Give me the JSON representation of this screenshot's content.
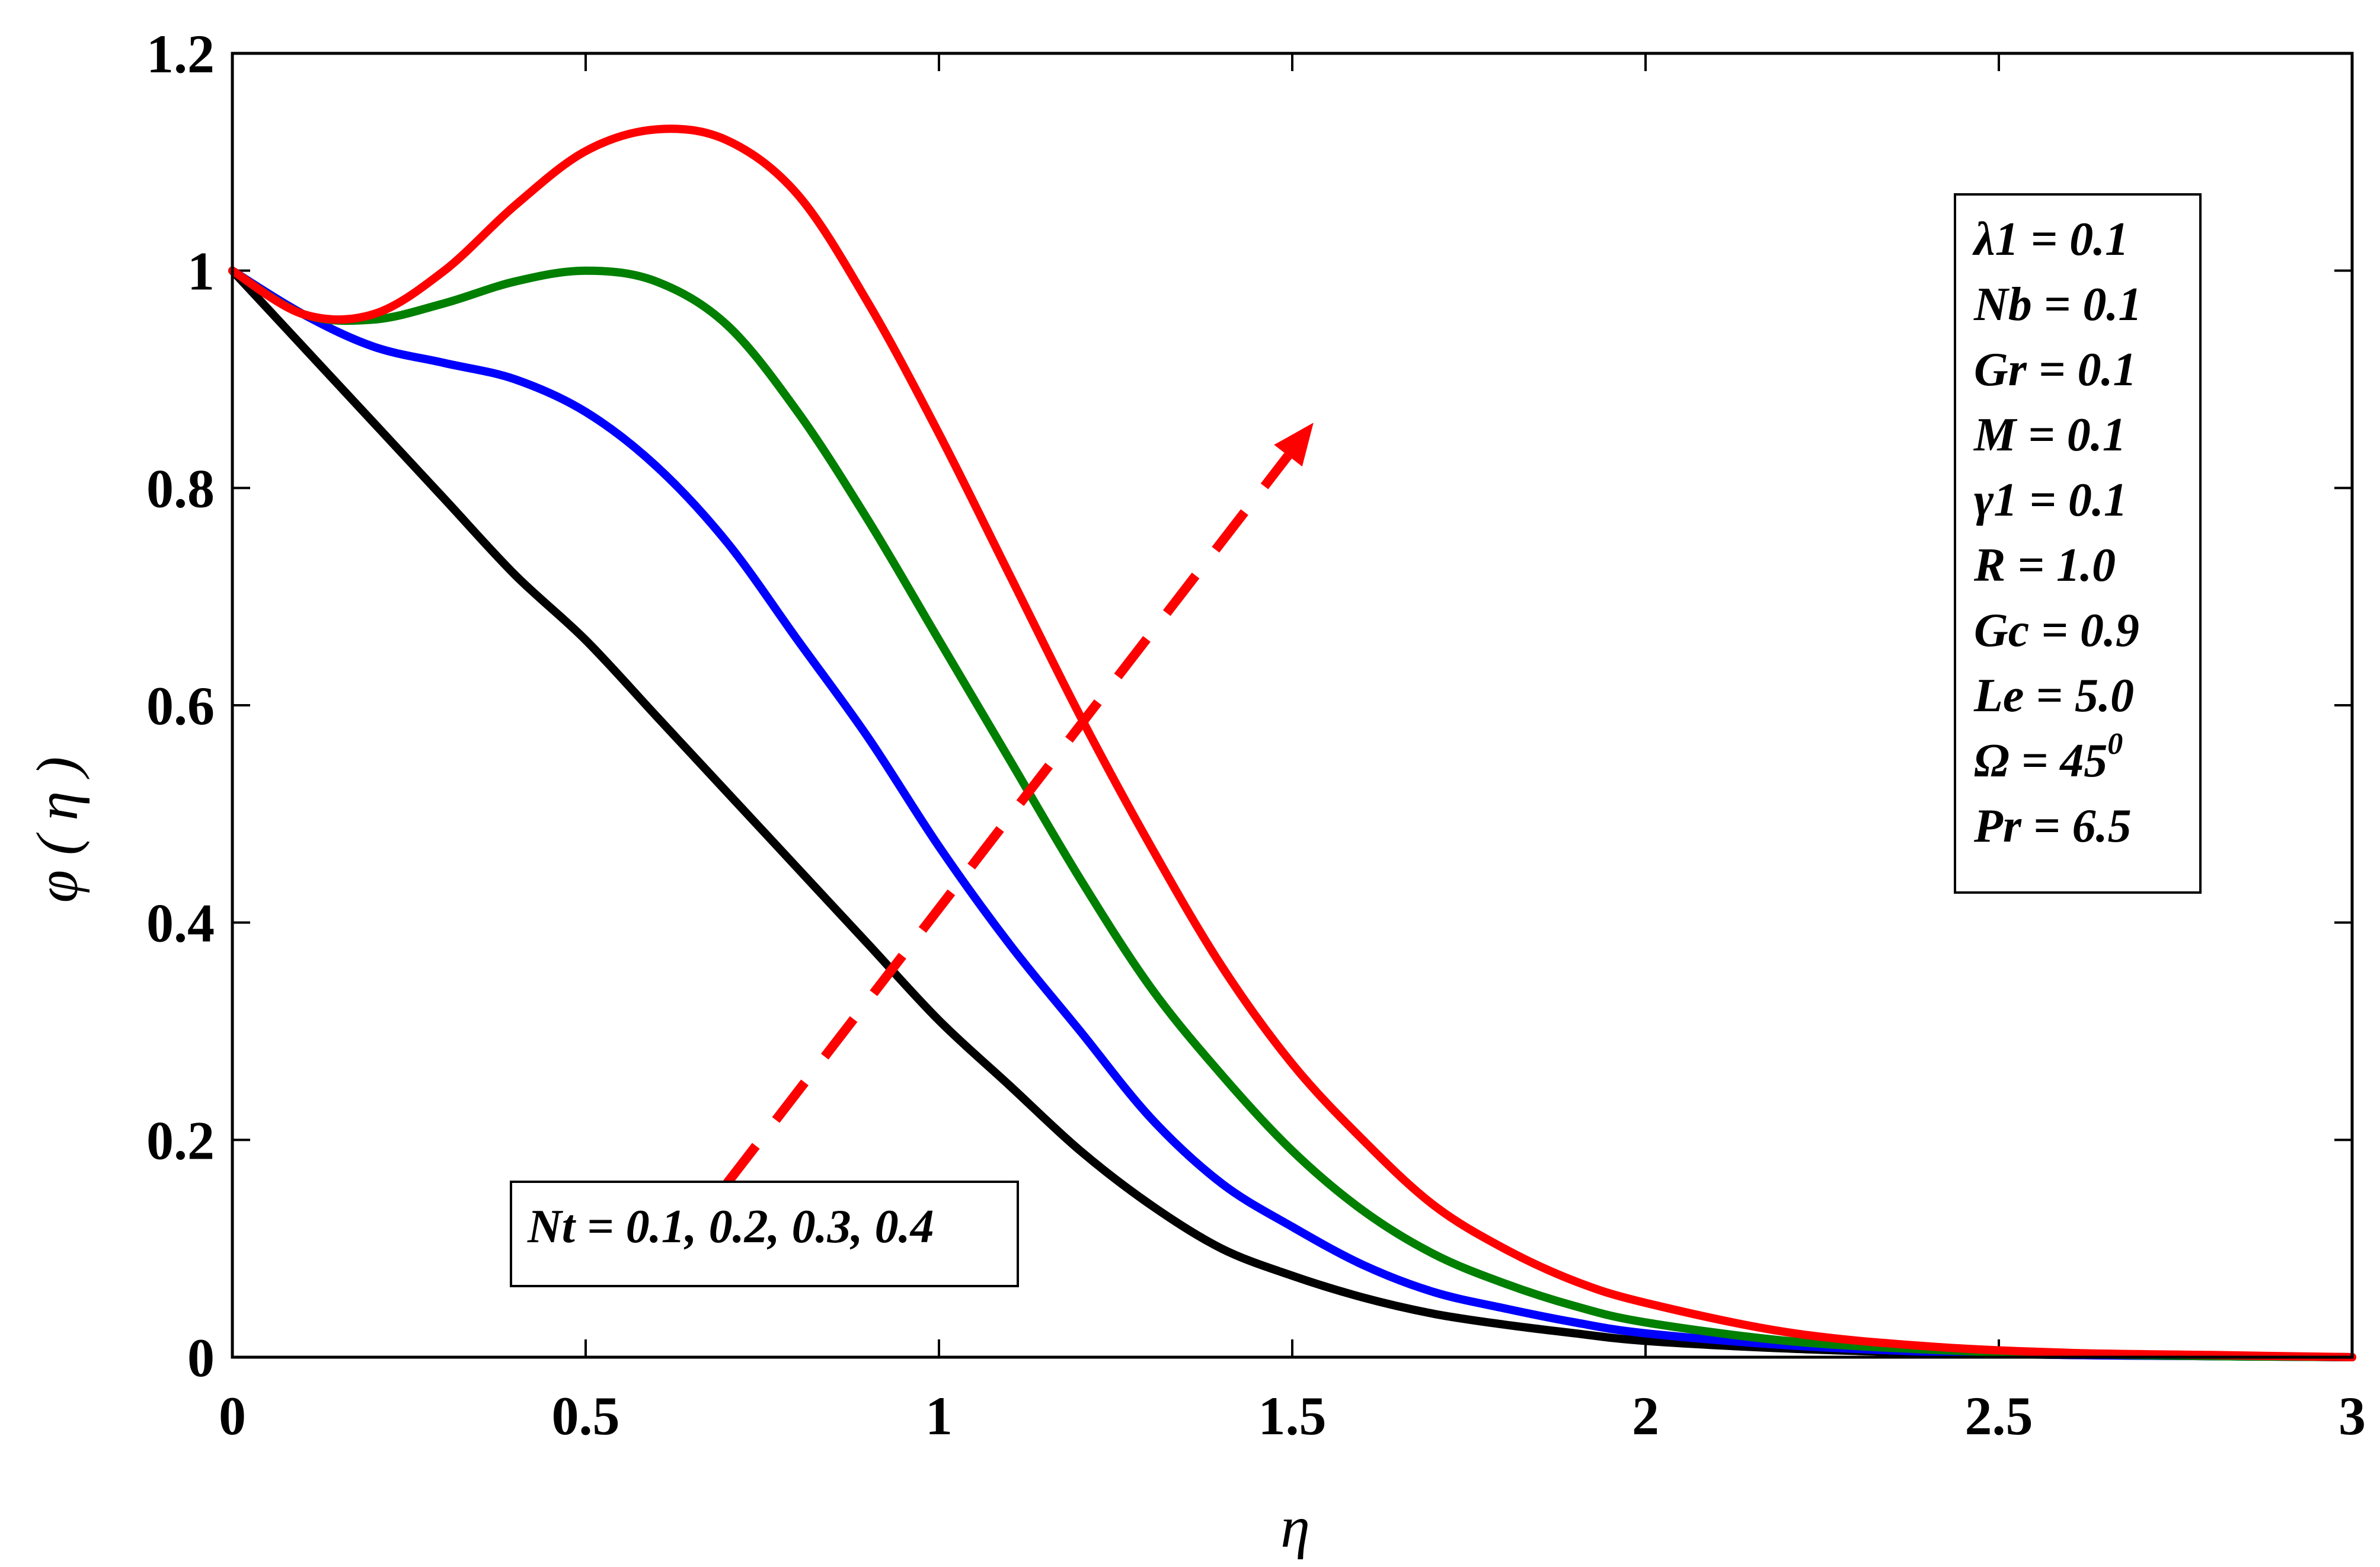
{
  "chart_data": {
    "type": "line",
    "title": "",
    "xlabel": "η",
    "ylabel": "φ ( η )",
    "xlim": [
      0,
      3
    ],
    "ylim": [
      0,
      1.2
    ],
    "x_ticks": [
      0,
      0.5,
      1,
      1.5,
      2,
      2.5,
      3
    ],
    "x_tick_labels": [
      "0",
      "0.5",
      "1",
      "1.5",
      "2",
      "2.5",
      "3"
    ],
    "y_ticks": [
      0,
      0.2,
      0.4,
      0.6,
      0.8,
      1.0,
      1.2
    ],
    "y_tick_labels": [
      "0",
      "0.2",
      "0.4",
      "0.6",
      "0.8",
      "1",
      "1.2"
    ],
    "grid": false,
    "x": [
      0,
      0.1,
      0.2,
      0.3,
      0.4,
      0.5,
      0.6,
      0.7,
      0.8,
      0.9,
      1.0,
      1.1,
      1.2,
      1.3,
      1.4,
      1.5,
      1.6,
      1.7,
      1.8,
      1.9,
      2.0,
      2.2,
      2.4,
      2.6,
      2.8,
      3.0
    ],
    "series": [
      {
        "name": "Nt = 0.1",
        "color": "#000000",
        "values": [
          1.0,
          0.93,
          0.86,
          0.79,
          0.72,
          0.66,
          0.59,
          0.52,
          0.45,
          0.38,
          0.31,
          0.25,
          0.19,
          0.14,
          0.1,
          0.075,
          0.055,
          0.04,
          0.03,
          0.022,
          0.015,
          0.008,
          0.004,
          0.002,
          0.001,
          0.0
        ]
      },
      {
        "name": "Nt = 0.2",
        "color": "#0000ff",
        "values": [
          1.0,
          0.96,
          0.93,
          0.915,
          0.9,
          0.87,
          0.82,
          0.75,
          0.66,
          0.57,
          0.47,
          0.38,
          0.3,
          0.22,
          0.16,
          0.12,
          0.085,
          0.06,
          0.045,
          0.032,
          0.022,
          0.011,
          0.005,
          0.002,
          0.001,
          0.0
        ]
      },
      {
        "name": "Nt = 0.3",
        "color": "#007f00",
        "values": [
          1.0,
          0.96,
          0.955,
          0.97,
          0.99,
          1.0,
          0.99,
          0.95,
          0.87,
          0.77,
          0.66,
          0.55,
          0.44,
          0.34,
          0.26,
          0.19,
          0.135,
          0.095,
          0.068,
          0.047,
          0.032,
          0.015,
          0.007,
          0.003,
          0.001,
          0.0
        ]
      },
      {
        "name": "Nt = 0.4",
        "color": "#ff0000",
        "values": [
          1.0,
          0.96,
          0.96,
          1.0,
          1.06,
          1.11,
          1.13,
          1.12,
          1.07,
          0.97,
          0.85,
          0.72,
          0.59,
          0.47,
          0.36,
          0.27,
          0.2,
          0.14,
          0.1,
          0.07,
          0.05,
          0.023,
          0.01,
          0.004,
          0.002,
          0.0
        ]
      }
    ],
    "arrow": {
      "from": [
        0.7,
        0.16
      ],
      "to": [
        1.53,
        0.86
      ],
      "color": "#ff0000",
      "style": "dashed"
    },
    "annotation": "Nt = 0.1, 0.2, 0.3, 0.4",
    "parameters": [
      {
        "label": "λ1 = 0.1"
      },
      {
        "label": "Nb = 0.1"
      },
      {
        "label": "Gr = 0.1"
      },
      {
        "label": "M = 0.1"
      },
      {
        "label": "γ1 = 0.1"
      },
      {
        "label": "R = 1.0"
      },
      {
        "label": "Gc = 0.9"
      },
      {
        "label": "Le = 5.0"
      },
      {
        "label": "Ω = 45",
        "superscript": "0"
      },
      {
        "label": "Pr = 6.5"
      }
    ]
  }
}
